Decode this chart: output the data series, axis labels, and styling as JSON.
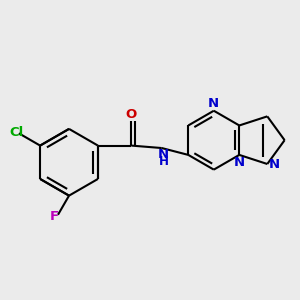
{
  "background_color": "#ebebeb",
  "bond_color": "#000000",
  "bond_width": 1.5,
  "atom_colors": {
    "N": "#0000cc",
    "O": "#cc0000",
    "Cl": "#00aa00",
    "F": "#bb00bb",
    "NH": "#0000cc"
  },
  "font_size": 9.5,
  "fig_width": 3.0,
  "fig_height": 3.0,
  "dpi": 100,
  "xlim": [
    -2.2,
    3.8
  ],
  "ylim": [
    -2.0,
    2.2
  ]
}
